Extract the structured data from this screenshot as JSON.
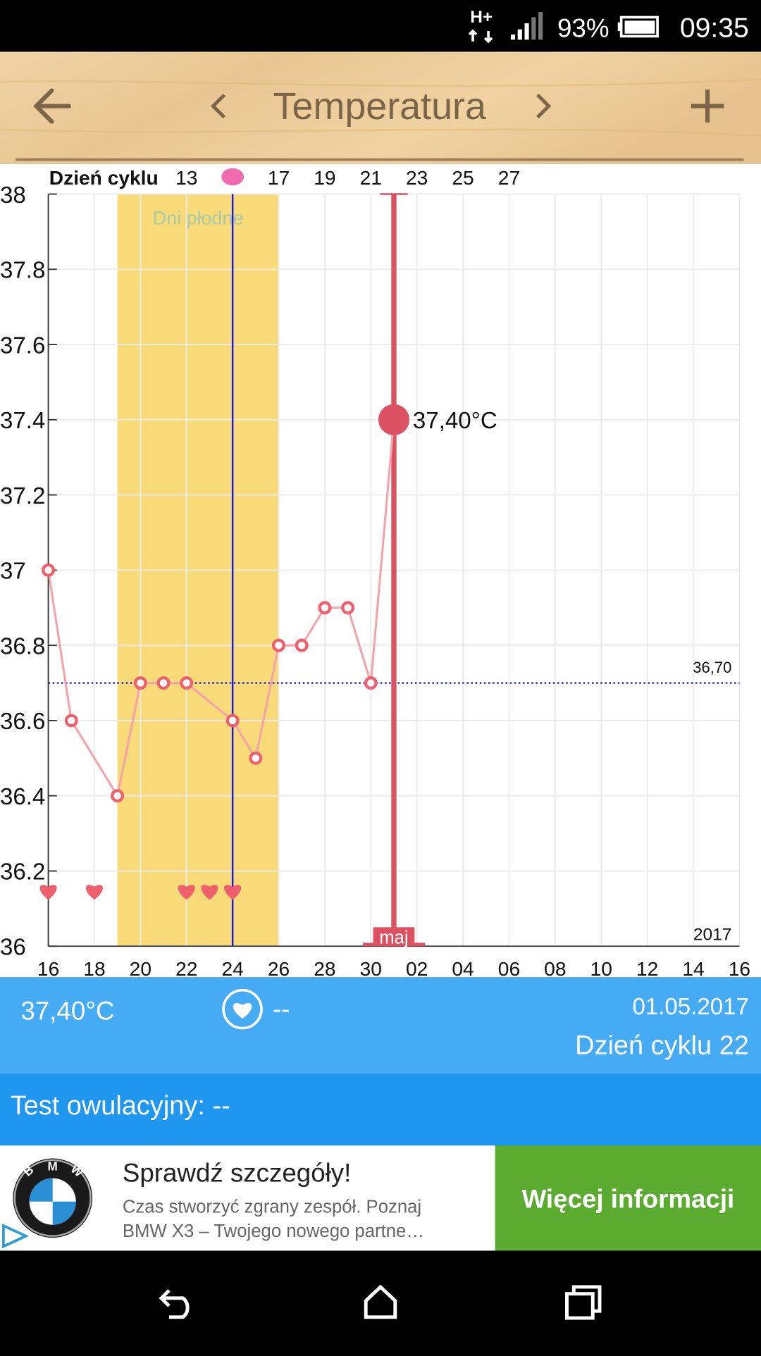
{
  "status_bar": {
    "network": "H+",
    "battery": "93%",
    "time": "09:35"
  },
  "header": {
    "title": "Temperatura"
  },
  "chart_data": {
    "type": "line",
    "x2_label": "Dzień cyklu",
    "categories": [
      "16",
      null,
      "18",
      null,
      "20",
      null,
      "22",
      null,
      "24",
      null,
      "26",
      null,
      "28",
      null,
      "30",
      null,
      "02",
      null,
      "04",
      null,
      "06",
      null,
      "08",
      null,
      "10",
      null,
      "12",
      null,
      "14",
      null,
      "16"
    ],
    "values": [
      37,
      36.6,
      null,
      36.4,
      36.7,
      36.7,
      36.7,
      null,
      36.6,
      36.5,
      36.8,
      36.8,
      36.9,
      36.9,
      36.7,
      37.4,
      null,
      null,
      null,
      null,
      null,
      null,
      null,
      null,
      null,
      null,
      null,
      null,
      null,
      null,
      null
    ],
    "value_labels": [
      null,
      null,
      null,
      null,
      null,
      null,
      null,
      null,
      null,
      null,
      null,
      null,
      null,
      null,
      null,
      "37,40°C",
      null,
      null,
      null,
      null,
      null,
      null,
      null,
      null,
      null,
      null,
      null,
      null,
      null,
      null,
      null
    ],
    "color": "#f5a3aa",
    "marker_color": "#f0606c",
    "ylim": [
      36,
      38
    ],
    "yticks": [
      36,
      36.2,
      36.4,
      36.6,
      36.8,
      37,
      37.2,
      37.4,
      37.6,
      37.8,
      38
    ],
    "x2lim": [
      7,
      37
    ],
    "x2ticks": [
      13,
      17,
      19,
      21,
      23,
      25,
      27
    ],
    "grid": true,
    "fertile_window": {
      "label": "Dni płodne",
      "start": 10,
      "end": 17,
      "color": "#f9da78"
    },
    "ovulation_cycle_day": 15,
    "intercourse_cycle_days": [
      7,
      9,
      13,
      14,
      15
    ],
    "reference_line": {
      "value": 36.7,
      "label": "36,70"
    },
    "cursor_cycle_day": 22,
    "month_label": "maj",
    "year_label": "2017"
  },
  "info": {
    "temperature": "37,40°C",
    "intercourse": "--",
    "date": "01.05.2017",
    "cycle_day": "Dzień cyklu 22"
  },
  "ovulation_test": "Test owulacyjny: --",
  "ad": {
    "logo_letters": [
      "B",
      "M",
      "W"
    ],
    "headline": "Sprawdź szczegóły!",
    "body_lines": [
      "Czas stworzyć zgrany zespół. Poznaj",
      "BMW X3 – Twojego nowego partne…"
    ],
    "button": "Więcej informacji"
  }
}
